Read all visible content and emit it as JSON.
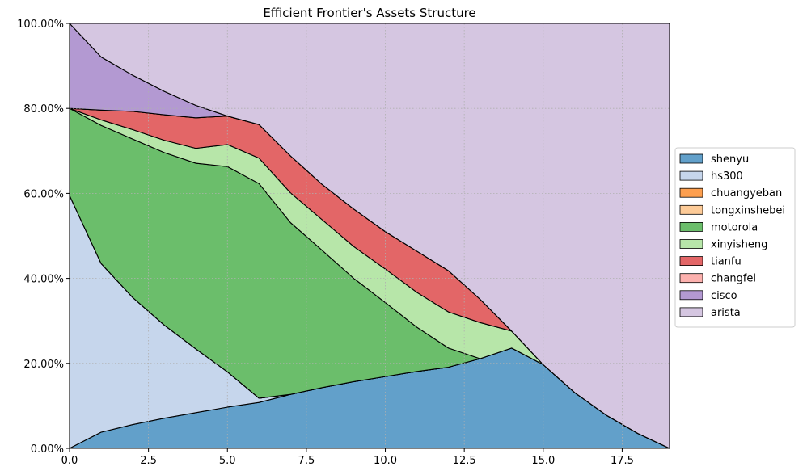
{
  "chart_data": {
    "type": "area",
    "stacked": true,
    "title": "Efficient Frontier's Assets Structure",
    "xlabel": "",
    "ylabel": "",
    "xlim": [
      0,
      19
    ],
    "ylim": [
      0,
      1
    ],
    "x_ticks": [
      0,
      2.5,
      5,
      7.5,
      10,
      12.5,
      15,
      17.5
    ],
    "x_tick_labels": [
      "0.0",
      "2.5",
      "5.0",
      "7.5",
      "10.0",
      "12.5",
      "15.0",
      "17.5"
    ],
    "y_ticks": [
      0,
      0.2,
      0.4,
      0.6,
      0.8,
      1.0
    ],
    "y_tick_labels": [
      "0.00%",
      "20.00%",
      "40.00%",
      "60.00%",
      "80.00%",
      "100.00%"
    ],
    "grid": true,
    "legend_position": "right",
    "x": [
      0,
      1,
      2,
      3,
      4,
      5,
      6,
      7,
      8,
      9,
      10,
      11,
      12,
      13,
      14,
      15,
      16,
      17,
      18,
      19
    ],
    "series": [
      {
        "name": "shenyu",
        "color": "#62a0ca",
        "values": [
          0,
          0.038,
          0.056,
          0.071,
          0.084,
          0.097,
          0.108,
          0.127,
          0.143,
          0.157,
          0.169,
          0.181,
          0.191,
          0.211,
          0.236,
          0.197,
          0.131,
          0.078,
          0.035,
          0
        ]
      },
      {
        "name": "hs300",
        "color": "#c6d6ec",
        "values": [
          0.595,
          0.397,
          0.299,
          0.219,
          0.15,
          0.083,
          0.01,
          0,
          0,
          0,
          0,
          0,
          0,
          0,
          0,
          0,
          0,
          0,
          0,
          0
        ]
      },
      {
        "name": "chuangyeban",
        "color": "#fd9f4f",
        "values": [
          0,
          0,
          0,
          0,
          0,
          0,
          0,
          0,
          0,
          0,
          0,
          0,
          0,
          0,
          0,
          0,
          0,
          0,
          0,
          0
        ]
      },
      {
        "name": "tongxinshebei",
        "color": "#fdcb98",
        "values": [
          0,
          0,
          0,
          0,
          0,
          0,
          0,
          0,
          0,
          0,
          0,
          0,
          0,
          0,
          0,
          0,
          0,
          0,
          0,
          0
        ]
      },
      {
        "name": "motorola",
        "color": "#6bbe6b",
        "values": [
          0.205,
          0.325,
          0.373,
          0.406,
          0.437,
          0.483,
          0.505,
          0.404,
          0.323,
          0.243,
          0.174,
          0.104,
          0.045,
          0,
          0,
          0,
          0,
          0,
          0,
          0
        ]
      },
      {
        "name": "xinyisheng",
        "color": "#b7e6a9",
        "values": [
          0,
          0.013,
          0.022,
          0.029,
          0.035,
          0.052,
          0.06,
          0.07,
          0.072,
          0.075,
          0.079,
          0.082,
          0.085,
          0.085,
          0.04,
          0,
          0,
          0,
          0,
          0
        ]
      },
      {
        "name": "tianfu",
        "color": "#e36667",
        "values": [
          0,
          0.023,
          0.043,
          0.06,
          0.072,
          0.067,
          0.079,
          0.087,
          0.083,
          0.088,
          0.088,
          0.097,
          0.097,
          0.055,
          0,
          0,
          0,
          0,
          0,
          0
        ]
      },
      {
        "name": "changfei",
        "color": "#fcb1ae",
        "values": [
          0,
          0,
          0,
          0,
          0,
          0,
          0,
          0,
          0,
          0,
          0,
          0,
          0,
          0,
          0,
          0,
          0,
          0,
          0,
          0
        ]
      },
      {
        "name": "cisco",
        "color": "#b399d2",
        "values": [
          0.2,
          0.125,
          0.085,
          0.055,
          0.029,
          0,
          0,
          0,
          0,
          0,
          0,
          0,
          0,
          0,
          0,
          0,
          0,
          0,
          0,
          0
        ]
      },
      {
        "name": "arista",
        "color": "#d5c6e1",
        "values": [
          0,
          0.079,
          0.122,
          0.16,
          0.193,
          0.218,
          0.238,
          0.312,
          0.379,
          0.437,
          0.49,
          0.536,
          0.582,
          0.649,
          0.724,
          0.803,
          0.869,
          0.922,
          0.965,
          1.0
        ]
      }
    ]
  }
}
